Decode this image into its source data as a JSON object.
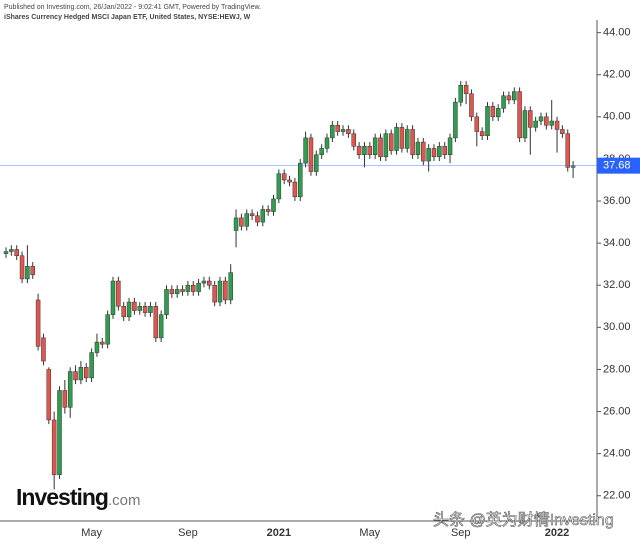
{
  "header": {
    "published": "Published on Investing.com, 26/Jan/2022 - 9:02:41 GMT, Powered by TradingView.",
    "instrument": "iShares Currency Hedged MSCI Japan ETF, United States, NYSE:HEWJ, W"
  },
  "branding": {
    "logo": "Investing",
    "logo_suffix": ".com",
    "watermark": "头条 @英为财情Investing"
  },
  "chart_data": {
    "type": "candlestick",
    "categories": [
      null,
      null,
      null,
      null,
      null,
      null,
      null,
      null,
      null,
      null,
      null,
      null,
      null,
      null,
      null,
      null,
      "May",
      null,
      null,
      null,
      null,
      null,
      null,
      null,
      null,
      null,
      null,
      null,
      null,
      null,
      null,
      null,
      null,
      null,
      "Sep",
      null,
      null,
      null,
      null,
      null,
      null,
      null,
      null,
      null,
      null,
      null,
      null,
      null,
      null,
      null,
      null,
      "2021",
      null,
      null,
      null,
      null,
      null,
      null,
      null,
      null,
      null,
      null,
      null,
      null,
      null,
      null,
      null,
      null,
      "May",
      null,
      null,
      null,
      null,
      null,
      null,
      null,
      null,
      null,
      null,
      null,
      null,
      null,
      null,
      null,
      null,
      "Sep",
      null,
      null,
      null,
      null,
      null,
      null,
      null,
      null,
      null,
      null,
      null,
      null,
      null,
      null,
      null,
      null,
      null,
      "2022",
      null,
      null,
      null
    ],
    "open": [
      33.5,
      33.6,
      33.7,
      33.4,
      32.3,
      32.9,
      31.3,
      29.5,
      28.0,
      25.6,
      23.0,
      27.0,
      26.2,
      27.9,
      27.5,
      28.1,
      27.6,
      28.8,
      29.3,
      29.2,
      30.6,
      32.2,
      31.0,
      30.5,
      31.2,
      30.8,
      31.0,
      30.7,
      31.0,
      29.5,
      30.6,
      31.8,
      31.6,
      31.8,
      31.7,
      32.0,
      31.7,
      32.1,
      32.2,
      32.0,
      31.2,
      32.2,
      31.3,
      34.6,
      35.2,
      34.8,
      35.4,
      35.3,
      35.0,
      35.6,
      35.5,
      36.1,
      37.3,
      37.0,
      36.9,
      36.2,
      37.8,
      39.0,
      37.4,
      38.2,
      38.5,
      39.0,
      39.6,
      39.3,
      39.4,
      39.2,
      38.6,
      38.2,
      38.6,
      38.2,
      39.0,
      38.1,
      39.2,
      38.4,
      39.5,
      38.5,
      39.4,
      38.2,
      38.8,
      37.9,
      38.5,
      38.1,
      38.6,
      38.2,
      39.0,
      40.7,
      41.5,
      41.1,
      40.0,
      39.3,
      39.1,
      40.5,
      40.0,
      40.4,
      41.0,
      40.8,
      41.2,
      39.0,
      40.3,
      39.5,
      39.8,
      40.0,
      39.6,
      39.8,
      39.4,
      39.2,
      37.6
    ],
    "high": [
      33.8,
      33.9,
      33.9,
      33.6,
      33.9,
      33.1,
      31.6,
      29.7,
      28.1,
      26.0,
      27.2,
      27.5,
      28.1,
      28.2,
      28.4,
      28.3,
      29.0,
      29.7,
      29.5,
      30.8,
      32.4,
      32.4,
      31.2,
      31.4,
      31.4,
      31.2,
      31.2,
      31.2,
      31.2,
      30.8,
      32.0,
      32.0,
      32.0,
      32.0,
      32.2,
      32.2,
      32.3,
      32.4,
      32.4,
      32.2,
      32.4,
      32.4,
      33.0,
      35.6,
      35.4,
      35.6,
      35.6,
      35.5,
      35.8,
      35.8,
      36.3,
      37.5,
      37.5,
      37.2,
      37.1,
      38.0,
      39.3,
      39.2,
      38.4,
      38.7,
      39.2,
      39.8,
      39.8,
      39.6,
      39.6,
      39.4,
      38.8,
      38.8,
      38.8,
      39.2,
      39.2,
      39.4,
      39.4,
      39.7,
      39.7,
      39.6,
      39.6,
      39.0,
      39.0,
      38.7,
      38.7,
      38.8,
      38.8,
      39.2,
      40.9,
      41.7,
      41.7,
      41.3,
      40.2,
      39.5,
      40.7,
      40.7,
      40.6,
      41.2,
      41.2,
      41.4,
      41.4,
      40.5,
      40.5,
      40.0,
      40.2,
      40.2,
      40.8,
      40.0,
      39.6,
      39.4,
      37.9
    ],
    "low": [
      33.3,
      33.4,
      33.2,
      32.1,
      32.1,
      32.3,
      28.9,
      28.2,
      25.4,
      22.3,
      22.8,
      25.9,
      25.7,
      27.3,
      27.3,
      27.4,
      27.4,
      28.6,
      29.0,
      29.0,
      30.4,
      30.8,
      30.3,
      30.3,
      30.6,
      30.6,
      30.5,
      30.5,
      29.3,
      29.3,
      30.4,
      31.4,
      31.4,
      31.5,
      31.5,
      31.5,
      31.5,
      31.9,
      31.8,
      31.0,
      31.0,
      31.1,
      31.1,
      33.8,
      34.6,
      34.6,
      35.1,
      34.8,
      34.8,
      35.3,
      35.3,
      35.9,
      36.8,
      36.7,
      36.0,
      36.0,
      37.6,
      37.2,
      37.2,
      38.0,
      38.3,
      38.8,
      39.1,
      39.1,
      39.0,
      38.4,
      38.0,
      37.6,
      38.0,
      38.0,
      37.9,
      37.9,
      38.2,
      38.2,
      38.3,
      38.3,
      38.0,
      38.0,
      37.7,
      37.4,
      37.9,
      37.9,
      38.0,
      37.8,
      38.8,
      40.5,
      40.6,
      39.8,
      38.6,
      38.9,
      38.9,
      39.8,
      39.8,
      40.2,
      40.6,
      40.6,
      38.8,
      38.8,
      38.2,
      39.3,
      39.6,
      39.4,
      39.4,
      38.3,
      39.0,
      37.4,
      37.1
    ],
    "close": [
      33.6,
      33.7,
      33.4,
      32.3,
      32.9,
      32.5,
      29.1,
      28.4,
      25.6,
      23.0,
      27.0,
      26.2,
      27.9,
      27.5,
      28.1,
      27.6,
      28.8,
      29.3,
      29.2,
      30.6,
      32.2,
      31.0,
      30.5,
      31.2,
      30.8,
      31.0,
      30.7,
      31.0,
      29.5,
      30.6,
      31.8,
      31.6,
      31.8,
      31.7,
      32.0,
      31.7,
      32.1,
      32.2,
      32.0,
      31.2,
      32.2,
      31.3,
      32.6,
      35.2,
      34.8,
      35.4,
      35.3,
      35.0,
      35.6,
      35.5,
      36.1,
      37.3,
      37.0,
      36.9,
      36.2,
      37.8,
      39.0,
      37.4,
      38.2,
      38.5,
      39.0,
      39.6,
      39.3,
      39.4,
      39.2,
      38.6,
      38.2,
      38.6,
      38.2,
      39.0,
      38.1,
      39.2,
      38.4,
      39.5,
      38.5,
      39.4,
      38.2,
      38.8,
      37.9,
      38.5,
      38.1,
      38.6,
      38.2,
      39.0,
      40.7,
      41.5,
      41.1,
      40.0,
      39.3,
      39.1,
      40.5,
      40.0,
      40.4,
      41.0,
      40.8,
      41.2,
      39.0,
      40.3,
      39.5,
      39.8,
      40.0,
      39.6,
      39.8,
      39.4,
      39.2,
      37.6,
      37.68
    ],
    "up_color": "#2e9e4e",
    "down_color": "#e0564e",
    "last_price_color": "#2962ff",
    "ylim": [
      20.8,
      44.6
    ],
    "yticks": [
      {
        "value": 22,
        "label": "22.00"
      },
      {
        "value": 24,
        "label": "24.00"
      },
      {
        "value": 26,
        "label": "26.00"
      },
      {
        "value": 28,
        "label": "28.00"
      },
      {
        "value": 30,
        "label": "30.00"
      },
      {
        "value": 32,
        "label": "32.00"
      },
      {
        "value": 34,
        "label": "34.00"
      },
      {
        "value": 36,
        "label": "36.00"
      },
      {
        "value": 38,
        "label": "38.00"
      },
      {
        "value": 40,
        "label": "40.00"
      },
      {
        "value": 42,
        "label": "42.00"
      },
      {
        "value": 44,
        "label": "44.00"
      }
    ],
    "grid": false
  }
}
